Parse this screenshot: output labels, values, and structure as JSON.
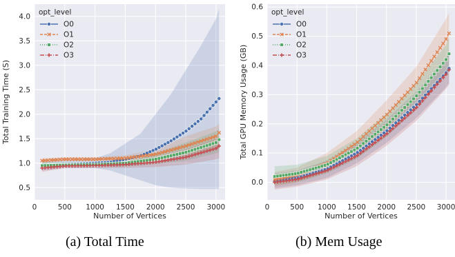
{
  "captions": {
    "a": "(a) Total Time",
    "b": "(b) Mem Usage"
  },
  "chart_data": [
    {
      "type": "line",
      "xlabel": "Number of Vertices",
      "ylabel": "Total Training Time (S)",
      "xlim": [
        0,
        3150
      ],
      "ylim": [
        0.25,
        4.25
      ],
      "xticks": [
        "0",
        "500",
        "1000",
        "1500",
        "2000",
        "2500",
        "3000"
      ],
      "xtick_values": [
        0,
        500,
        1000,
        1500,
        2000,
        2500,
        3000
      ],
      "yticks": [
        "0.5",
        "1.0",
        "1.5",
        "2.0",
        "2.5",
        "3.0",
        "3.5",
        "4.0"
      ],
      "ytick_values": [
        0.5,
        1.0,
        1.5,
        2.0,
        2.5,
        3.0,
        3.5,
        4.0
      ],
      "grid": true,
      "legend": {
        "title": "opt_level",
        "position": "top-left"
      },
      "x_range": [
        125,
        3050
      ],
      "series": [
        {
          "name": "O0",
          "color": "#4c72b0",
          "marker": "circle",
          "dash": "",
          "x": [
            125,
            500,
            1000,
            1250,
            1500,
            1750,
            2000,
            2250,
            2500,
            2750,
            3000,
            3050
          ],
          "y": [
            0.95,
            0.97,
            1.0,
            1.02,
            1.08,
            1.15,
            1.28,
            1.45,
            1.65,
            1.9,
            2.25,
            2.32
          ],
          "band_lower": [
            0.85,
            0.9,
            0.9,
            0.85,
            0.75,
            0.65,
            0.55,
            0.5,
            0.48,
            0.47,
            0.47,
            0.47
          ],
          "band_upper": [
            1.05,
            1.05,
            1.1,
            1.2,
            1.4,
            1.6,
            2.0,
            2.4,
            2.9,
            3.4,
            3.95,
            4.15
          ]
        },
        {
          "name": "O1",
          "color": "#dd8452",
          "marker": "x",
          "dash": "4,2",
          "x": [
            125,
            500,
            1000,
            1500,
            2000,
            2500,
            3000,
            3050
          ],
          "y": [
            1.05,
            1.08,
            1.08,
            1.1,
            1.18,
            1.35,
            1.55,
            1.62
          ],
          "band_lower": [
            1.0,
            1.04,
            1.04,
            1.05,
            1.08,
            1.15,
            1.28,
            1.3
          ],
          "band_upper": [
            1.1,
            1.12,
            1.12,
            1.16,
            1.28,
            1.55,
            1.75,
            1.8
          ]
        },
        {
          "name": "O2",
          "color": "#55a868",
          "marker": "square",
          "dash": "1,2",
          "x": [
            125,
            500,
            1000,
            1500,
            2000,
            2500,
            3000,
            3050
          ],
          "y": [
            0.95,
            0.96,
            0.97,
            1.0,
            1.08,
            1.22,
            1.42,
            1.48
          ],
          "band_lower": [
            0.9,
            0.92,
            0.92,
            0.93,
            0.98,
            1.05,
            1.2,
            1.22
          ],
          "band_upper": [
            1.02,
            1.02,
            1.03,
            1.07,
            1.2,
            1.42,
            1.65,
            1.7
          ]
        },
        {
          "name": "O3",
          "color": "#c44e52",
          "marker": "plus",
          "dash": "6,2,1,2",
          "x": [
            125,
            500,
            1000,
            1500,
            2000,
            2500,
            3000,
            3050
          ],
          "y": [
            0.9,
            0.94,
            0.95,
            0.97,
            1.02,
            1.12,
            1.3,
            1.35
          ],
          "band_lower": [
            0.82,
            0.9,
            0.9,
            0.9,
            0.92,
            0.97,
            1.08,
            1.1
          ],
          "band_upper": [
            0.98,
            0.98,
            0.99,
            1.05,
            1.12,
            1.28,
            1.5,
            1.55
          ]
        }
      ]
    },
    {
      "type": "line",
      "xlabel": "Number of Vertices",
      "ylabel": "Total GPU Memory Usage (GB)",
      "xlim": [
        0,
        3150
      ],
      "ylim": [
        -0.06,
        0.61
      ],
      "xticks": [
        "0",
        "500",
        "1000",
        "1500",
        "2000",
        "2500",
        "3000"
      ],
      "xtick_values": [
        0,
        500,
        1000,
        1500,
        2000,
        2500,
        3000
      ],
      "yticks": [
        "0.0",
        "0.1",
        "0.2",
        "0.3",
        "0.4",
        "0.5",
        "0.6"
      ],
      "ytick_values": [
        0.0,
        0.1,
        0.2,
        0.3,
        0.4,
        0.5,
        0.6
      ],
      "grid": true,
      "legend": {
        "title": "opt_level",
        "position": "top-left"
      },
      "x_range": [
        125,
        3050
      ],
      "series": [
        {
          "name": "O0",
          "color": "#4c72b0",
          "marker": "circle",
          "dash": "",
          "x": [
            125,
            500,
            1000,
            1500,
            2000,
            2500,
            3000,
            3050
          ],
          "y": [
            0.005,
            0.015,
            0.045,
            0.1,
            0.175,
            0.265,
            0.375,
            0.39
          ],
          "band_lower": [
            -0.02,
            -0.01,
            0.015,
            0.065,
            0.135,
            0.22,
            0.325,
            0.34
          ],
          "band_upper": [
            0.03,
            0.04,
            0.075,
            0.135,
            0.215,
            0.31,
            0.425,
            0.44
          ]
        },
        {
          "name": "O1",
          "color": "#dd8452",
          "marker": "x",
          "dash": "4,2",
          "x": [
            125,
            500,
            1000,
            1500,
            2000,
            2500,
            3000,
            3050
          ],
          "y": [
            0.01,
            0.025,
            0.065,
            0.135,
            0.23,
            0.34,
            0.49,
            0.51
          ],
          "band_lower": [
            -0.015,
            0.0,
            0.035,
            0.095,
            0.18,
            0.285,
            0.42,
            0.44
          ],
          "band_upper": [
            0.035,
            0.05,
            0.1,
            0.175,
            0.28,
            0.395,
            0.56,
            0.58
          ]
        },
        {
          "name": "O2",
          "color": "#55a868",
          "marker": "square",
          "dash": "1,2",
          "x": [
            125,
            500,
            1000,
            1500,
            2000,
            2500,
            3000,
            3050
          ],
          "y": [
            0.02,
            0.03,
            0.06,
            0.115,
            0.195,
            0.295,
            0.42,
            0.44
          ],
          "band_lower": [
            -0.01,
            0.0,
            0.03,
            0.08,
            0.155,
            0.25,
            0.37,
            0.385
          ],
          "band_upper": [
            0.055,
            0.06,
            0.09,
            0.15,
            0.235,
            0.34,
            0.47,
            0.495
          ]
        },
        {
          "name": "O3",
          "color": "#c44e52",
          "marker": "plus",
          "dash": "6,2,1,2",
          "x": [
            125,
            500,
            1000,
            1500,
            2000,
            2500,
            3000,
            3050
          ],
          "y": [
            0.0,
            0.01,
            0.04,
            0.09,
            0.165,
            0.255,
            0.37,
            0.385
          ],
          "band_lower": [
            -0.025,
            -0.015,
            0.01,
            0.055,
            0.125,
            0.21,
            0.32,
            0.335
          ],
          "band_upper": [
            0.025,
            0.035,
            0.07,
            0.125,
            0.205,
            0.3,
            0.42,
            0.435
          ]
        }
      ]
    }
  ]
}
